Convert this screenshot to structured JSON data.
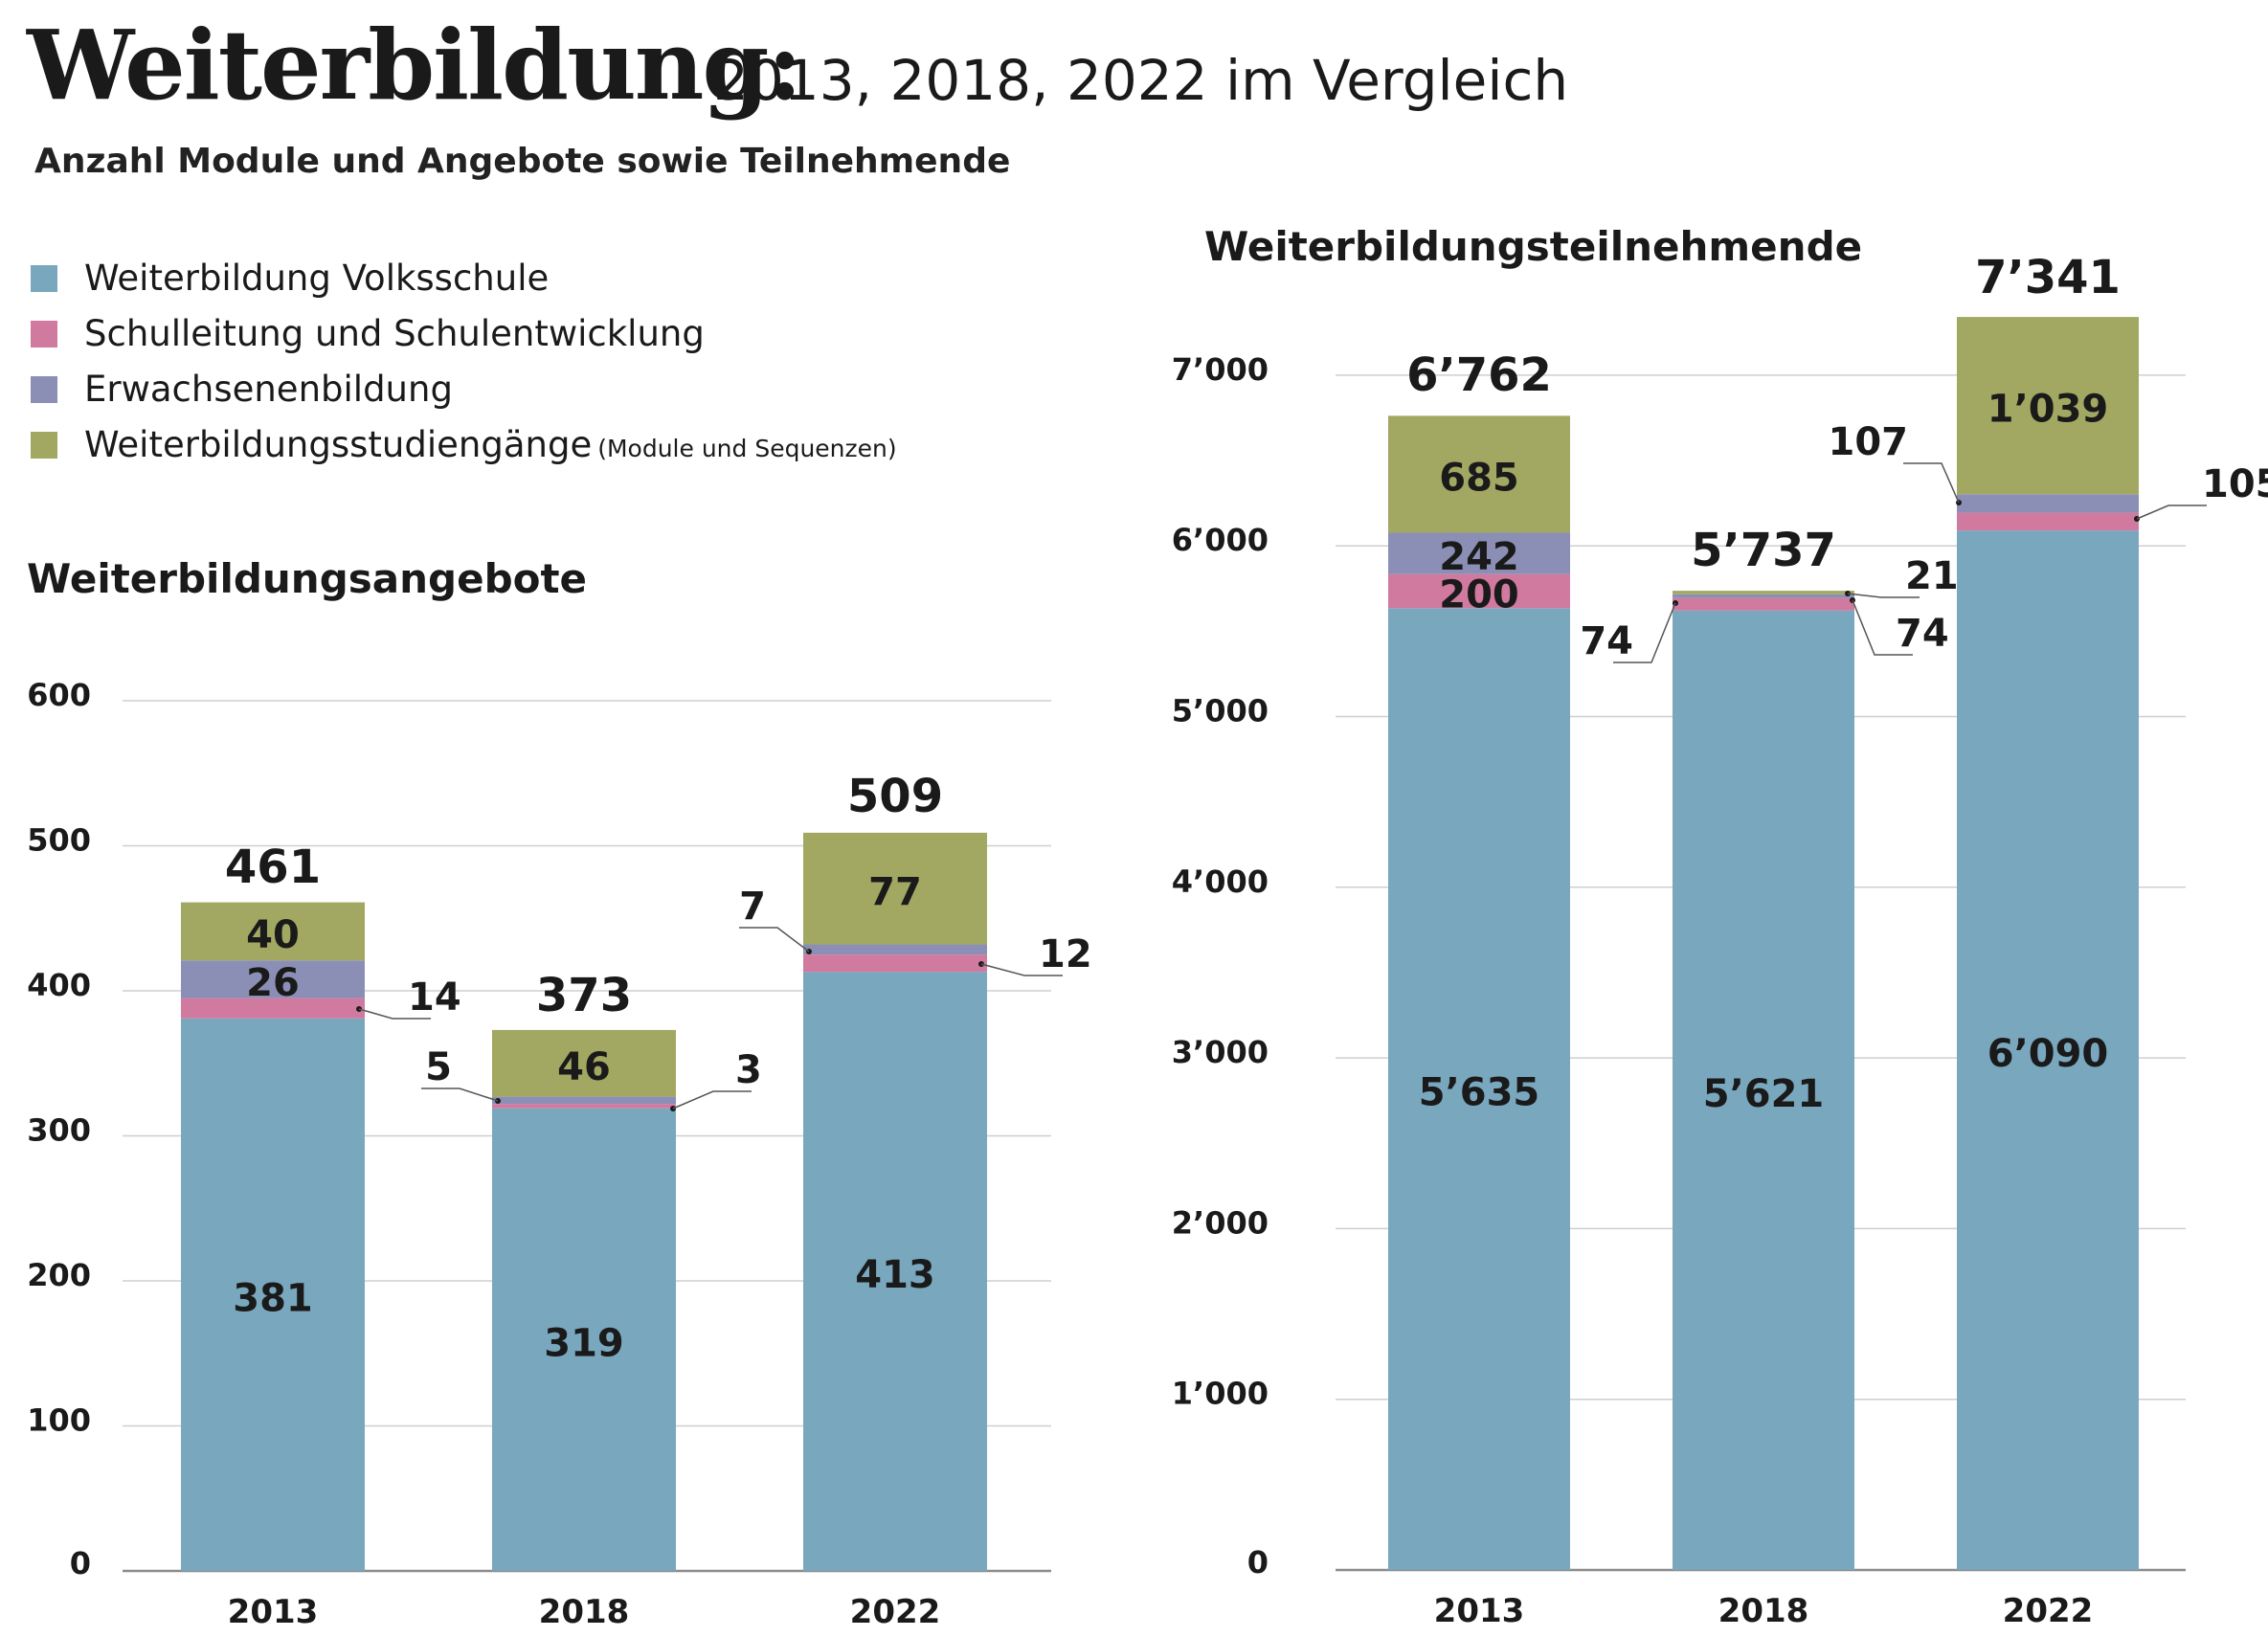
{
  "header": {
    "title": "Weiterbildung:",
    "title_suffix": "2013, 2018, 2022 im Vergleich",
    "subtitle": "Anzahl Module und Angebote sowie Teilnehmende"
  },
  "legend": [
    {
      "label": "Weiterbildung Volksschule",
      "note": "",
      "color": "#78a7be"
    },
    {
      "label": "Schulleitung und Schulentwicklung",
      "note": "",
      "color": "#d07aa0"
    },
    {
      "label": "Erwachsenenbildung",
      "note": "",
      "color": "#8b8fb6"
    },
    {
      "label": "Weiterbildungsstudiengänge",
      "note": "(Module und Sequenzen)",
      "color": "#a2a862"
    }
  ],
  "chart_data": [
    {
      "type": "bar",
      "stacked": true,
      "title": "Weiterbildungsangebote",
      "categories": [
        "2013",
        "2018",
        "2022"
      ],
      "ylim": [
        0,
        600
      ],
      "yticks": [
        "0",
        "100",
        "200",
        "300",
        "400",
        "500",
        "600"
      ],
      "grid": true,
      "totals": [
        "461",
        "373",
        "509"
      ],
      "series": [
        {
          "name": "Weiterbildung Volksschule",
          "values": [
            381,
            319,
            413
          ],
          "labels": [
            "381",
            "319",
            "413"
          ]
        },
        {
          "name": "Schulleitung und Schulentwicklung",
          "values": [
            14,
            3,
            12
          ],
          "labels": [
            "14",
            "3",
            "12"
          ]
        },
        {
          "name": "Erwachsenenbildung",
          "values": [
            26,
            5,
            7
          ],
          "labels": [
            "26",
            "5",
            "7"
          ]
        },
        {
          "name": "Weiterbildungsstudiengänge",
          "values": [
            40,
            46,
            77
          ],
          "labels": [
            "40",
            "46",
            "77"
          ]
        }
      ]
    },
    {
      "type": "bar",
      "stacked": true,
      "title": "Weiterbildungsteilnehmende",
      "categories": [
        "2013",
        "2018",
        "2022"
      ],
      "ylim": [
        0,
        7000
      ],
      "yticks": [
        "0",
        "1’000",
        "2’000",
        "3’000",
        "4’000",
        "5’000",
        "6’000",
        "7’000"
      ],
      "grid": true,
      "totals": [
        "6’762",
        "5’737",
        "7’341"
      ],
      "series": [
        {
          "name": "Weiterbildung Volksschule",
          "values": [
            5635,
            5621,
            6090
          ],
          "labels": [
            "5’635",
            "5’621",
            "6’090"
          ]
        },
        {
          "name": "Schulleitung und Schulentwicklung",
          "values": [
            200,
            74,
            105
          ],
          "labels": [
            "200",
            "74",
            "105"
          ]
        },
        {
          "name": "Erwachsenenbildung",
          "values": [
            242,
            21,
            107
          ],
          "labels": [
            "242",
            "21",
            "107"
          ]
        },
        {
          "name": "Weiterbildungsstudiengänge",
          "values": [
            685,
            21,
            1039
          ],
          "labels": [
            "685",
            "21",
            "1’039"
          ]
        }
      ]
    }
  ]
}
